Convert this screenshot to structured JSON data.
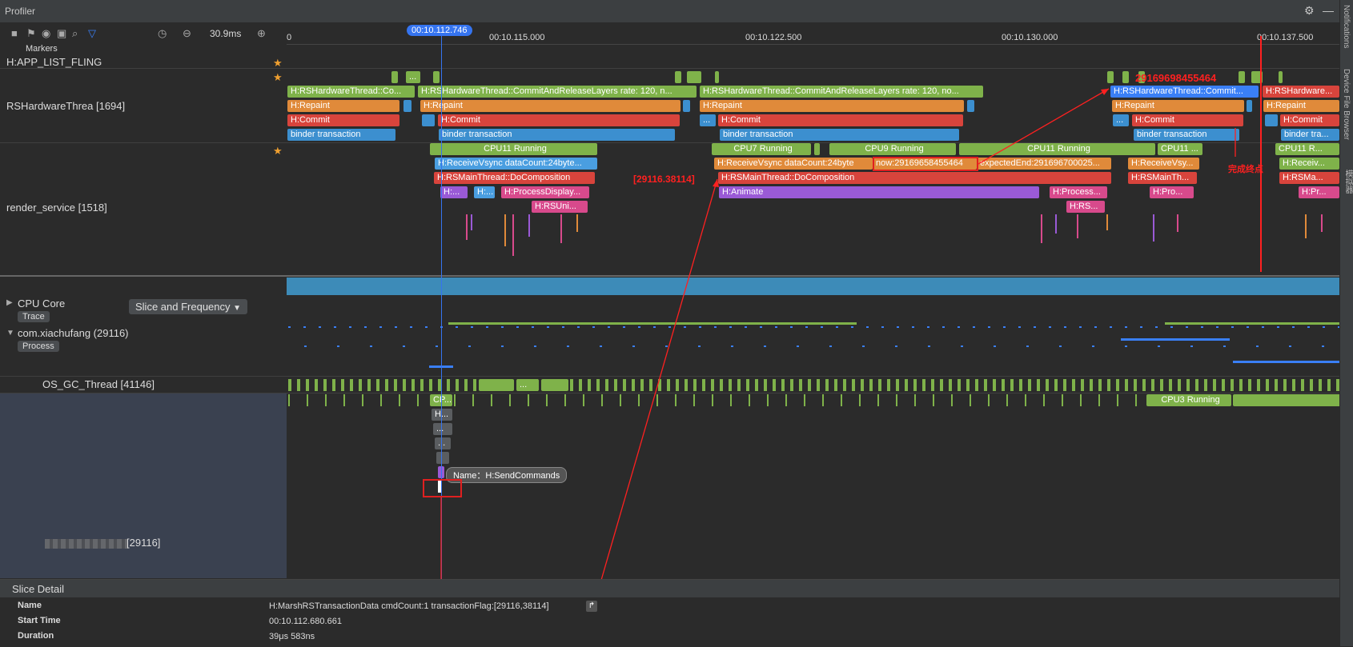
{
  "window": {
    "title": "Profiler"
  },
  "side_tabs": [
    "Notifications",
    "Device File Browser",
    "模拟器"
  ],
  "toolbar": {
    "zoom_value": "30.9ms"
  },
  "ruler": {
    "cursor_time": "00:10.112.746",
    "ticks": [
      "0",
      "00:10.115.000",
      "00:10.122.500",
      "00:10.130.000",
      "00:10.137.500"
    ]
  },
  "rows": {
    "markers": "Markers",
    "app_list_fling": "H:APP_LIST_FLING",
    "rs_hardware_thread": "RSHardwareThrea [1694]",
    "render_service": "render_service [1518]",
    "cpu_core": "CPU Core",
    "cpu_core_select": "Slice and Frequency",
    "trace_tag": "Trace",
    "process_name": "com.xiachufang (29116)",
    "process_tag": "Process",
    "os_gc_thread": "OS_GC_Thread [41146]",
    "main_thread_suffix": "[29116]"
  },
  "slices": {
    "rs_commit_1": "H:RSHardwareThread::Co...",
    "rs_commit_2": "H:RSHardwareThread::CommitAndReleaseLayers rate: 120, n...",
    "rs_commit_3": "H:RSHardwareThread::CommitAndReleaseLayers rate: 120, no...",
    "rs_commit_4": "H:RSHardwareThread::Commit...",
    "rs_commit_5": "H:RSHardware...",
    "repaint": "H:Repaint",
    "commit": "H:Commit",
    "binder": "binder transaction",
    "binder_short": "binder tra...",
    "cpu11_running": "CPU11 Running",
    "cpu7_running": "CPU7 Running",
    "cpu9_running": "CPU9 Running",
    "cpu11_short": "CPU11 ...",
    "cpu11_r": "CPU11 R...",
    "receive_vsync_1": "H:ReceiveVsync dataCount:24byte...",
    "receive_vsync_2": "H:ReceiveVsync dataCount:24byte",
    "now_value": "now:29169658455464",
    "expected_end": "expectedEnd:291696700025...",
    "receive_vsync_3": "H:ReceiveVsy...",
    "receive_vsync_4": "H:Receiv...",
    "do_composition": "H:RSMainThread::DoComposition",
    "main_th_short": "H:RSMainTh...",
    "rs_ma": "H:RSMa...",
    "h_dots": "H:...",
    "h_short": "H...",
    "process_display": "H:ProcessDisplay...",
    "rs_uni": "H:RSUni...",
    "animate": "H:Animate",
    "process_short": "H:Process...",
    "rs_short": "H:RS...",
    "pro_short": "H:Pro...",
    "pr_short": "H:Pr...",
    "cp_short": "CP...",
    "cpu3_running": "CPU3 Running",
    "ellipsis": "...",
    "ellipsis_dots": "..."
  },
  "annotations": {
    "timestamp_top": "29169698455464",
    "pair_id": "[29116.38114]",
    "completion_label": "完成终点"
  },
  "tooltip": {
    "label": "Name：",
    "value": "H:SendCommands"
  },
  "slice_detail": {
    "header": "Slice Detail",
    "name_key": "Name",
    "name_value": "H:MarshRSTransactionData cmdCount:1 transactionFlag:[29116,38114]",
    "start_key": "Start Time",
    "start_value": "00:10.112.680.661",
    "duration_key": "Duration",
    "duration_value": "39μs 583ns"
  },
  "colors": {
    "cursor": "#3574f0",
    "annotation": "#ff2020",
    "running_green": "#7fb24a"
  }
}
